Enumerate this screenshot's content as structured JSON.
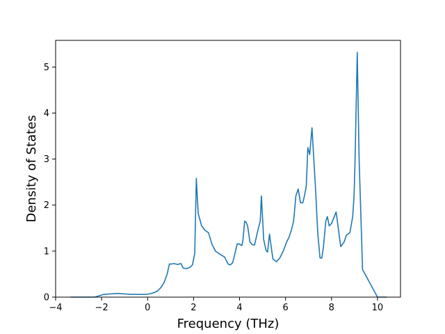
{
  "chart_data": {
    "type": "line",
    "title": "",
    "xlabel": "Frequency (THz)",
    "ylabel": "Density of States",
    "xlim": [
      -4.0,
      11.0
    ],
    "ylim": [
      0.0,
      5.58
    ],
    "xticks": [
      -4,
      -2,
      0,
      2,
      4,
      6,
      8,
      10
    ],
    "xtick_labels": [
      "−4",
      "−2",
      "0",
      "2",
      "4",
      "6",
      "8",
      "10"
    ],
    "yticks": [
      0,
      1,
      2,
      3,
      4,
      5
    ],
    "ytick_labels": [
      "0",
      "1",
      "2",
      "3",
      "4",
      "5"
    ],
    "grid": false,
    "legend": "none",
    "line_color": "#1f77b4",
    "series": [
      {
        "x": [
          -3.35,
          -2.6,
          -2.3,
          -2.1,
          -1.9,
          -1.6,
          -1.3,
          -1.0,
          -0.7,
          -0.4,
          -0.1,
          0.1,
          0.3,
          0.45,
          0.6,
          0.72,
          0.85,
          0.95,
          1.05,
          1.15,
          1.3,
          1.45,
          1.55,
          1.7,
          1.85,
          1.95,
          2.05,
          2.12,
          2.2,
          2.35,
          2.5,
          2.65,
          2.8,
          2.95,
          3.1,
          3.25,
          3.35,
          3.5,
          3.6,
          3.7,
          3.8,
          3.9,
          4.0,
          4.1,
          4.15,
          4.22,
          4.28,
          4.35,
          4.45,
          4.55,
          4.65,
          4.75,
          4.82,
          4.9,
          4.95,
          5.05,
          5.15,
          5.22,
          5.3,
          5.45,
          5.6,
          5.75,
          5.9,
          6.05,
          6.15,
          6.25,
          6.35,
          6.45,
          6.55,
          6.65,
          6.75,
          6.8,
          6.9,
          6.97,
          7.05,
          7.15,
          7.3,
          7.4,
          7.5,
          7.58,
          7.65,
          7.75,
          7.82,
          7.9,
          8.0,
          8.2,
          8.4,
          8.55,
          8.65,
          8.8,
          8.92,
          8.98,
          9.02,
          9.12,
          9.2,
          9.35,
          10.0,
          10.4
        ],
        "y": [
          0.0,
          0.0,
          0.0,
          0.03,
          0.06,
          0.07,
          0.08,
          0.07,
          0.06,
          0.06,
          0.06,
          0.07,
          0.1,
          0.14,
          0.22,
          0.32,
          0.5,
          0.72,
          0.72,
          0.73,
          0.71,
          0.73,
          0.63,
          0.62,
          0.65,
          0.7,
          0.95,
          2.58,
          1.82,
          1.55,
          1.45,
          1.4,
          1.15,
          1.0,
          0.95,
          0.9,
          0.87,
          0.72,
          0.7,
          0.75,
          0.95,
          1.16,
          1.15,
          1.12,
          1.25,
          1.65,
          1.63,
          1.55,
          1.2,
          1.14,
          1.13,
          1.35,
          1.5,
          1.65,
          2.2,
          1.25,
          1.02,
          0.98,
          1.37,
          0.83,
          0.77,
          0.85,
          1.0,
          1.2,
          1.3,
          1.45,
          1.65,
          2.2,
          2.35,
          2.05,
          2.05,
          2.15,
          2.4,
          3.25,
          3.1,
          3.68,
          2.4,
          1.4,
          0.85,
          0.85,
          1.1,
          1.65,
          1.75,
          1.55,
          1.6,
          1.85,
          1.1,
          1.2,
          1.35,
          1.4,
          1.75,
          2.2,
          2.9,
          5.32,
          3.0,
          0.6,
          0.0,
          0.0
        ]
      }
    ]
  }
}
